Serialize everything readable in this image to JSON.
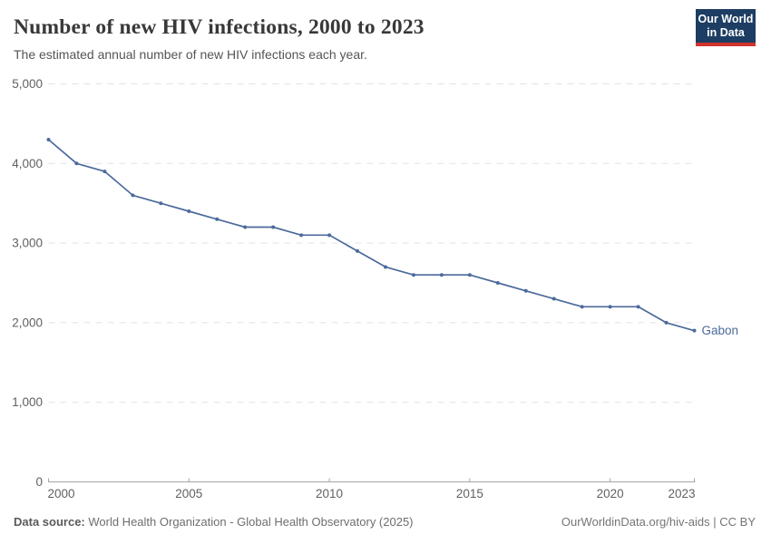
{
  "header": {
    "title": "Number of new HIV infections, 2000 to 2023",
    "subtitle": "The estimated annual number of new HIV infections each year.",
    "logo": {
      "line1": "Our World",
      "line2": "in Data",
      "bg_color": "#1d3d63",
      "bar_color": "#d0342c"
    }
  },
  "chart_data": {
    "type": "line",
    "title": "Number of new HIV infections, 2000 to 2023",
    "entity": "Gabon",
    "x": [
      2000,
      2001,
      2002,
      2003,
      2004,
      2005,
      2006,
      2007,
      2008,
      2009,
      2010,
      2011,
      2012,
      2013,
      2014,
      2015,
      2016,
      2017,
      2018,
      2019,
      2020,
      2021,
      2022,
      2023
    ],
    "values": [
      4300,
      4000,
      3900,
      3600,
      3500,
      3400,
      3300,
      3200,
      3200,
      3100,
      3100,
      2900,
      2700,
      2600,
      2600,
      2600,
      2500,
      2400,
      2300,
      2200,
      2200,
      2200,
      2000,
      1900
    ],
    "xlabel": "",
    "ylabel": "",
    "xlim": [
      2000,
      2023
    ],
    "ylim": [
      0,
      5000
    ],
    "yticks": [
      0,
      1000,
      2000,
      3000,
      4000,
      5000
    ],
    "xticks": [
      2000,
      2005,
      2010,
      2015,
      2020,
      2023
    ],
    "grid": "horizontal-dashed",
    "legend_position": "end-of-line-label",
    "line_color": "#4c6a9c",
    "grid_color": "#e2e2e2",
    "axis_color": "#a5a5a5",
    "tick_label_color": "#616161"
  },
  "footer": {
    "source_label": "Data source:",
    "source_text": " World Health Organization - Global Health Observatory (2025)",
    "credit": "OurWorldinData.org/hiv-aids | CC BY"
  }
}
